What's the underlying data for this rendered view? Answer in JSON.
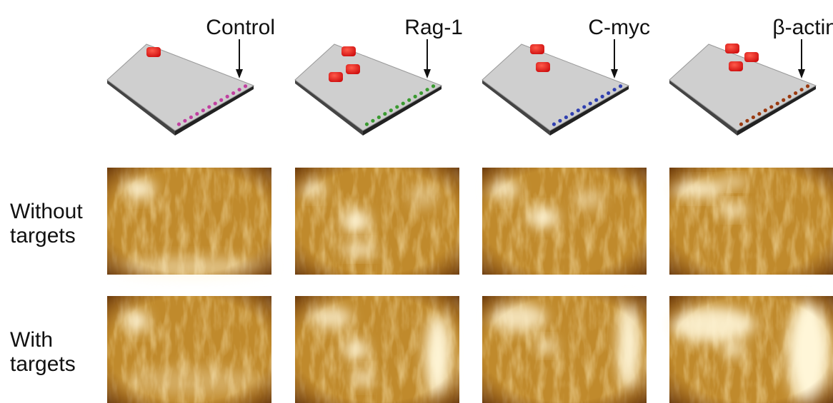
{
  "columns": [
    {
      "label": "Control"
    },
    {
      "label": "Rag-1"
    },
    {
      "label": "C-myc"
    },
    {
      "label": "β-actin"
    }
  ],
  "rows": [
    {
      "lines": [
        "Without",
        "targets"
      ]
    },
    {
      "lines": [
        "With",
        "targets"
      ]
    }
  ]
}
